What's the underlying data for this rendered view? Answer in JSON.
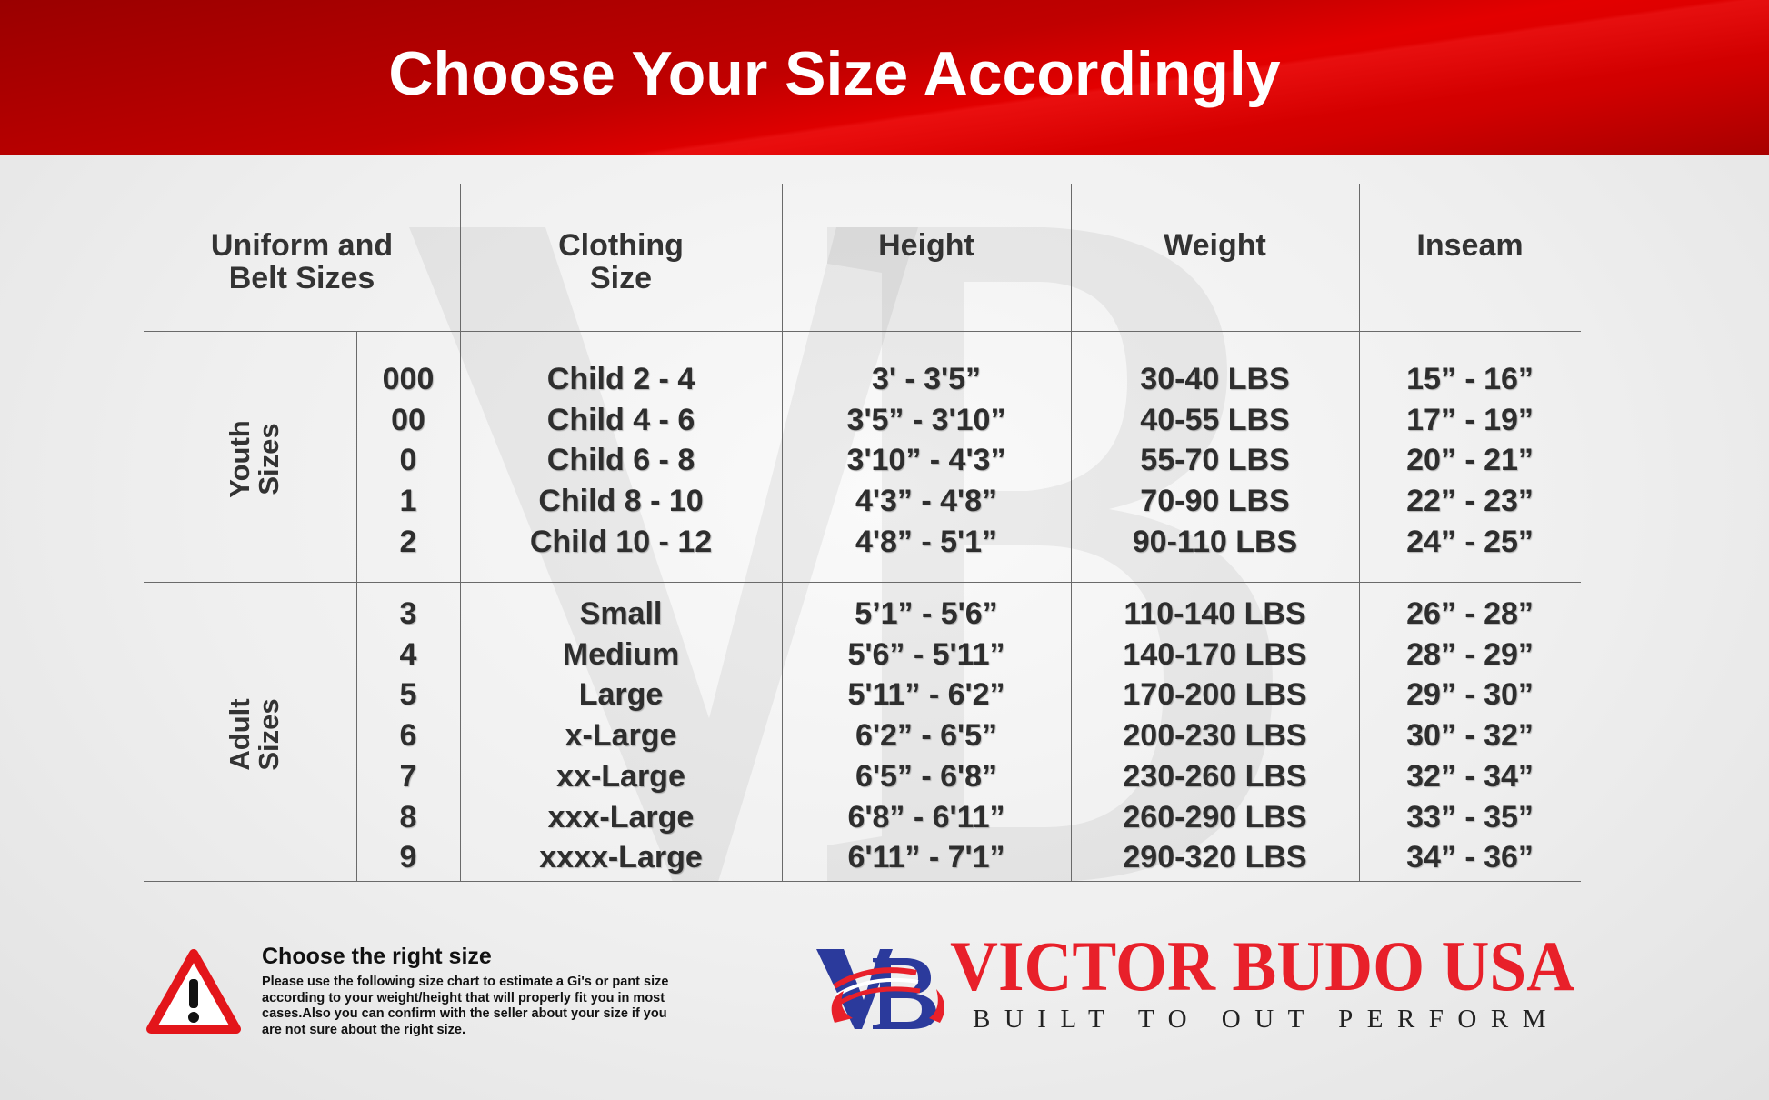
{
  "header": {
    "title": "Choose Your Size Accordingly"
  },
  "table": {
    "headers": {
      "uniform_line1": "Uniform and",
      "uniform_line2": "Belt Sizes",
      "clothing_line1": "Clothing",
      "clothing_line2": "Size",
      "height": "Height",
      "weight": "Weight",
      "inseam": "Inseam"
    },
    "youth_label_line1": "Youth",
    "youth_label_line2": "Sizes",
    "adult_label_line1": "Adult",
    "adult_label_line2": "Sizes",
    "youth_rows": [
      {
        "size": "000",
        "clothing": "Child 2 - 4",
        "height": "3' - 3'5”",
        "weight": "30-40 LBS",
        "inseam": "15” - 16”"
      },
      {
        "size": "00",
        "clothing": "Child 4 - 6",
        "height": "3'5” - 3'10”",
        "weight": "40-55 LBS",
        "inseam": "17” - 19”"
      },
      {
        "size": "0",
        "clothing": "Child 6 - 8",
        "height": "3'10” - 4'3”",
        "weight": "55-70 LBS",
        "inseam": "20” - 21”"
      },
      {
        "size": "1",
        "clothing": "Child 8 - 10",
        "height": "4'3” - 4'8”",
        "weight": "70-90 LBS",
        "inseam": "22” - 23”"
      },
      {
        "size": "2",
        "clothing": "Child 10 - 12",
        "height": "4'8” - 5'1”",
        "weight": "90-110 LBS",
        "inseam": "24” - 25”"
      }
    ],
    "adult_rows": [
      {
        "size": "3",
        "clothing": "Small",
        "height": "5’1” - 5'6”",
        "weight": "110-140 LBS",
        "inseam": "26” - 28”"
      },
      {
        "size": "4",
        "clothing": "Medium",
        "height": "5'6” - 5'11”",
        "weight": "140-170 LBS",
        "inseam": "28” - 29”"
      },
      {
        "size": "5",
        "clothing": "Large",
        "height": "5'11” - 6'2”",
        "weight": "170-200 LBS",
        "inseam": "29” - 30”"
      },
      {
        "size": "6",
        "clothing": "x-Large",
        "height": "6'2” - 6'5”",
        "weight": "200-230 LBS",
        "inseam": "30” - 32”"
      },
      {
        "size": "7",
        "clothing": "xx-Large",
        "height": "6'5” - 6'8”",
        "weight": "230-260 LBS",
        "inseam": "32” - 34”"
      },
      {
        "size": "8",
        "clothing": "xxx-Large",
        "height": "6'8” - 6'11”",
        "weight": "260-290 LBS",
        "inseam": "33” - 35”"
      },
      {
        "size": "9",
        "clothing": "xxxx-Large",
        "height": "6'11” - 7'1”",
        "weight": "290-320 LBS",
        "inseam": "34” - 36”"
      }
    ]
  },
  "notice": {
    "icon": "warning-triangle-icon",
    "title": "Choose the right size",
    "text": "Please use the following size chart to estimate a Gi's or pant size according to your weight/height that will properly fit you in most cases.Also you can confirm with the seller about your size if you are not sure about the right size."
  },
  "brand": {
    "logo_text": "VB",
    "name": "VICTOR BUDO USA",
    "tagline": "BUILT TO OUT PERFORM",
    "colors": {
      "red": "#e8202a",
      "blue": "#2b3a9c",
      "header_red": "#d00000"
    }
  }
}
